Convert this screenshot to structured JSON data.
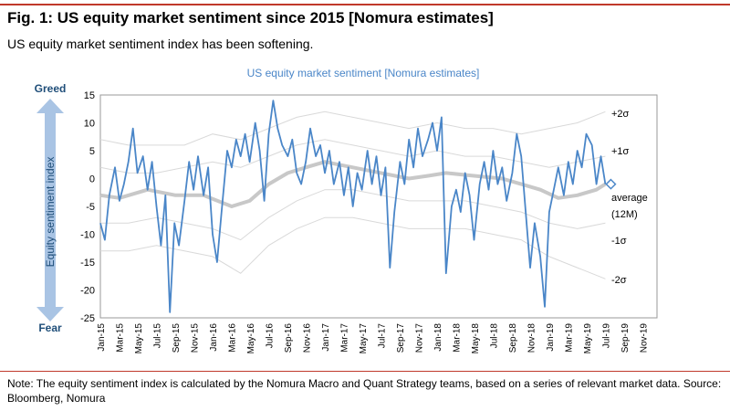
{
  "header": {
    "title": "Fig. 1: US equity market sentiment since 2015 [Nomura estimates]",
    "subtitle": "US equity market sentiment index has been softening."
  },
  "footer": {
    "note": "Note: The equity sentiment index is calculated by the Nomura Macro and Quant Strategy teams, based on a series of relevant market data. Source: Bloomberg, Nomura"
  },
  "colors": {
    "series": "#4a86c8",
    "average": "#c8c8c8",
    "bands": "#d9d9d9",
    "arrow": "#a9c4e4",
    "axis_text": "#1f4e79",
    "chart_title": "#4a86c8",
    "rule": "#c0392b"
  },
  "chart_data": {
    "type": "line",
    "title": "US equity market sentiment [Nomura estimates]",
    "ylabel": "Equity sentiment index",
    "y_top_label": "Greed",
    "y_bottom_label": "Fear",
    "ylim": [
      -25,
      15
    ],
    "yticks": [
      "15",
      "10",
      "5",
      "0",
      "-5",
      "-10",
      "-15",
      "-20",
      "-25"
    ],
    "xlim": [
      "2015-01",
      "2019-12"
    ],
    "x_tick_labels": [
      "Jan-15",
      "Mar-15",
      "May-15",
      "Jul-15",
      "Sep-15",
      "Nov-15",
      "Jan-16",
      "Mar-16",
      "May-16",
      "Jul-16",
      "Sep-16",
      "Nov-16",
      "Jan-17",
      "Mar-17",
      "May-17",
      "Jul-17",
      "Sep-17",
      "Nov-17",
      "Jan-18",
      "Mar-18",
      "May-18",
      "Jul-18",
      "Sep-18",
      "Nov-18",
      "Jan-19",
      "Mar-19",
      "May-19",
      "Jul-19",
      "Sep-19",
      "Nov-19"
    ],
    "grid": false,
    "legend": "none",
    "band_labels": [
      "+2σ",
      "+1σ",
      "average",
      "(12M)",
      "-1σ",
      "-2σ"
    ],
    "series": [
      {
        "values": [
          [
            2015.0,
            -8
          ],
          [
            2015.04,
            -11
          ],
          [
            2015.08,
            -3
          ],
          [
            2015.13,
            2
          ],
          [
            2015.17,
            -4
          ],
          [
            2015.21,
            -1
          ],
          [
            2015.25,
            3
          ],
          [
            2015.29,
            9
          ],
          [
            2015.33,
            1
          ],
          [
            2015.38,
            4
          ],
          [
            2015.42,
            -2
          ],
          [
            2015.46,
            3
          ],
          [
            2015.5,
            -5
          ],
          [
            2015.54,
            -12
          ],
          [
            2015.58,
            -3
          ],
          [
            2015.62,
            -24
          ],
          [
            2015.66,
            -8
          ],
          [
            2015.7,
            -12
          ],
          [
            2015.75,
            -4
          ],
          [
            2015.79,
            3
          ],
          [
            2015.83,
            -2
          ],
          [
            2015.87,
            4
          ],
          [
            2015.92,
            -3
          ],
          [
            2015.96,
            2
          ],
          [
            2016.0,
            -10
          ],
          [
            2016.04,
            -15
          ],
          [
            2016.08,
            -6
          ],
          [
            2016.13,
            5
          ],
          [
            2016.17,
            2
          ],
          [
            2016.21,
            7
          ],
          [
            2016.25,
            4
          ],
          [
            2016.29,
            8
          ],
          [
            2016.33,
            3
          ],
          [
            2016.38,
            10
          ],
          [
            2016.42,
            5
          ],
          [
            2016.46,
            -4
          ],
          [
            2016.5,
            8
          ],
          [
            2016.54,
            14
          ],
          [
            2016.58,
            9
          ],
          [
            2016.62,
            6
          ],
          [
            2016.67,
            4
          ],
          [
            2016.71,
            7
          ],
          [
            2016.75,
            1
          ],
          [
            2016.79,
            -1
          ],
          [
            2016.83,
            3
          ],
          [
            2016.87,
            9
          ],
          [
            2016.92,
            4
          ],
          [
            2016.96,
            6
          ],
          [
            2017.0,
            1
          ],
          [
            2017.04,
            5
          ],
          [
            2017.08,
            -1
          ],
          [
            2017.13,
            3
          ],
          [
            2017.17,
            -3
          ],
          [
            2017.21,
            2
          ],
          [
            2017.25,
            -5
          ],
          [
            2017.29,
            1
          ],
          [
            2017.33,
            -2
          ],
          [
            2017.38,
            5
          ],
          [
            2017.42,
            -1
          ],
          [
            2017.46,
            4
          ],
          [
            2017.5,
            -3
          ],
          [
            2017.54,
            2
          ],
          [
            2017.58,
            -16
          ],
          [
            2017.62,
            -6
          ],
          [
            2017.67,
            3
          ],
          [
            2017.71,
            -1
          ],
          [
            2017.75,
            7
          ],
          [
            2017.79,
            2
          ],
          [
            2017.83,
            9
          ],
          [
            2017.87,
            4
          ],
          [
            2017.92,
            7
          ],
          [
            2017.96,
            10
          ],
          [
            2018.0,
            5
          ],
          [
            2018.04,
            11
          ],
          [
            2018.08,
            -17
          ],
          [
            2018.13,
            -5
          ],
          [
            2018.17,
            -2
          ],
          [
            2018.21,
            -6
          ],
          [
            2018.25,
            1
          ],
          [
            2018.29,
            -3
          ],
          [
            2018.33,
            -11
          ],
          [
            2018.38,
            -1
          ],
          [
            2018.42,
            3
          ],
          [
            2018.46,
            -2
          ],
          [
            2018.5,
            5
          ],
          [
            2018.54,
            -1
          ],
          [
            2018.58,
            2
          ],
          [
            2018.62,
            -4
          ],
          [
            2018.67,
            1
          ],
          [
            2018.71,
            8
          ],
          [
            2018.75,
            4
          ],
          [
            2018.79,
            -6
          ],
          [
            2018.83,
            -16
          ],
          [
            2018.87,
            -8
          ],
          [
            2018.92,
            -14
          ],
          [
            2018.96,
            -23
          ],
          [
            2019.0,
            -6
          ],
          [
            2019.04,
            -2
          ],
          [
            2019.08,
            2
          ],
          [
            2019.13,
            -3
          ],
          [
            2019.17,
            3
          ],
          [
            2019.21,
            -1
          ],
          [
            2019.25,
            5
          ],
          [
            2019.29,
            2
          ],
          [
            2019.33,
            8
          ],
          [
            2019.38,
            6
          ],
          [
            2019.42,
            -1
          ],
          [
            2019.46,
            4
          ],
          [
            2019.5,
            -1
          ]
        ]
      }
    ],
    "average_12m": [
      [
        2015.0,
        -3
      ],
      [
        2015.17,
        -3.5
      ],
      [
        2015.42,
        -2
      ],
      [
        2015.67,
        -3
      ],
      [
        2015.92,
        -3
      ],
      [
        2016.17,
        -5
      ],
      [
        2016.33,
        -4
      ],
      [
        2016.5,
        -1
      ],
      [
        2016.67,
        1
      ],
      [
        2016.83,
        2
      ],
      [
        2017.0,
        3
      ],
      [
        2017.25,
        2
      ],
      [
        2017.5,
        1
      ],
      [
        2017.75,
        0
      ],
      [
        2017.92,
        0.5
      ],
      [
        2018.08,
        1
      ],
      [
        2018.33,
        0.5
      ],
      [
        2018.58,
        0
      ],
      [
        2018.75,
        -1
      ],
      [
        2018.92,
        -2
      ],
      [
        2019.08,
        -3.5
      ],
      [
        2019.25,
        -3
      ],
      [
        2019.42,
        -2
      ],
      [
        2019.5,
        -1
      ]
    ],
    "plus1_sigma": [
      [
        2015.0,
        2
      ],
      [
        2015.25,
        1
      ],
      [
        2015.5,
        1
      ],
      [
        2015.75,
        2
      ],
      [
        2016.0,
        3
      ],
      [
        2016.25,
        2
      ],
      [
        2016.5,
        4
      ],
      [
        2016.75,
        6
      ],
      [
        2017.0,
        7
      ],
      [
        2017.25,
        6
      ],
      [
        2017.5,
        5
      ],
      [
        2017.75,
        4
      ],
      [
        2018.0,
        5
      ],
      [
        2018.25,
        4
      ],
      [
        2018.5,
        4
      ],
      [
        2018.75,
        3
      ],
      [
        2019.0,
        2
      ],
      [
        2019.25,
        3
      ],
      [
        2019.5,
        4
      ]
    ],
    "minus1_sigma": [
      [
        2015.0,
        -8
      ],
      [
        2015.25,
        -8
      ],
      [
        2015.5,
        -7
      ],
      [
        2015.75,
        -8
      ],
      [
        2016.0,
        -9
      ],
      [
        2016.25,
        -11
      ],
      [
        2016.5,
        -7
      ],
      [
        2016.75,
        -4
      ],
      [
        2017.0,
        -2
      ],
      [
        2017.25,
        -2
      ],
      [
        2017.5,
        -3
      ],
      [
        2017.75,
        -4
      ],
      [
        2018.0,
        -4
      ],
      [
        2018.25,
        -4
      ],
      [
        2018.5,
        -5
      ],
      [
        2018.75,
        -6
      ],
      [
        2019.0,
        -8
      ],
      [
        2019.25,
        -9
      ],
      [
        2019.5,
        -8
      ]
    ],
    "plus2_sigma": [
      [
        2015.0,
        7
      ],
      [
        2015.25,
        6
      ],
      [
        2015.5,
        6
      ],
      [
        2015.75,
        6
      ],
      [
        2016.0,
        8
      ],
      [
        2016.25,
        7
      ],
      [
        2016.5,
        9
      ],
      [
        2016.75,
        11
      ],
      [
        2017.0,
        12
      ],
      [
        2017.25,
        11
      ],
      [
        2017.5,
        10
      ],
      [
        2017.75,
        9
      ],
      [
        2018.0,
        10
      ],
      [
        2018.25,
        9
      ],
      [
        2018.5,
        9
      ],
      [
        2018.75,
        8
      ],
      [
        2019.0,
        9
      ],
      [
        2019.25,
        10
      ],
      [
        2019.5,
        12
      ]
    ],
    "minus2_sigma": [
      [
        2015.0,
        -13
      ],
      [
        2015.25,
        -13
      ],
      [
        2015.5,
        -12
      ],
      [
        2015.75,
        -13
      ],
      [
        2016.0,
        -14
      ],
      [
        2016.25,
        -17
      ],
      [
        2016.5,
        -12
      ],
      [
        2016.75,
        -9
      ],
      [
        2017.0,
        -7
      ],
      [
        2017.25,
        -7
      ],
      [
        2017.5,
        -8
      ],
      [
        2017.75,
        -9
      ],
      [
        2018.0,
        -9
      ],
      [
        2018.25,
        -9
      ],
      [
        2018.5,
        -10
      ],
      [
        2018.75,
        -11
      ],
      [
        2019.0,
        -14
      ],
      [
        2019.25,
        -16
      ],
      [
        2019.5,
        -18
      ]
    ],
    "latest_marker": [
      2019.5,
      -1
    ]
  }
}
